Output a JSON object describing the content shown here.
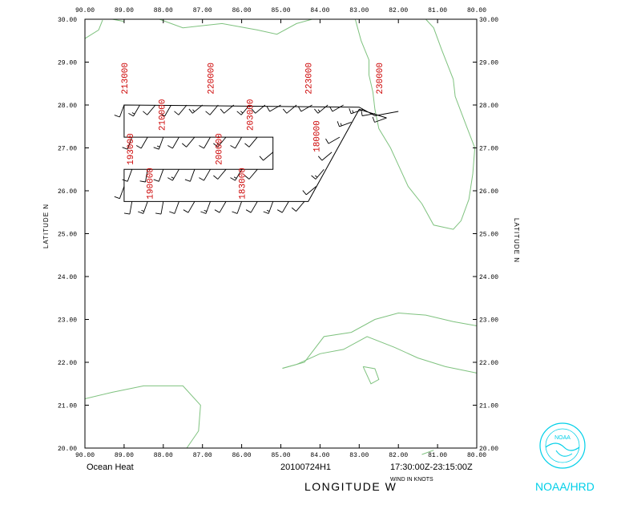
{
  "map": {
    "lon_range": [
      -90,
      -80
    ],
    "lat_range": [
      20,
      30
    ],
    "lon_ticks": [
      "90.00",
      "89.00",
      "88.00",
      "87.00",
      "86.00",
      "85.00",
      "84.00",
      "83.00",
      "82.00",
      "81.00",
      "80.00"
    ],
    "lat_ticks": [
      "20.00",
      "21.00",
      "22.00",
      "23.00",
      "24.00",
      "25.00",
      "26.00",
      "27.00",
      "28.00",
      "29.00",
      "30.00"
    ],
    "xlabel": "LONGITUDE W",
    "ylabel_left": "LATITUDE N",
    "ylabel_right": "LATITUDE N",
    "colors": {
      "coast": "#7fc27f",
      "track": "#000000",
      "time_labels": "#cc0000",
      "logo": "#00cfe8"
    }
  },
  "footer": {
    "project": "Ocean Heat",
    "flight_id": "20100724H1",
    "time_range": "17:30:00Z-23:15:00Z",
    "wind_units": "WIND IN KNOTS"
  },
  "logo": {
    "org_text": "NOAA/HRD",
    "seal_text": "NOAA"
  },
  "time_labels": [
    {
      "text": "213000",
      "lon": -89.0,
      "lat": 28.25
    },
    {
      "text": "220000",
      "lon": -86.8,
      "lat": 28.25
    },
    {
      "text": "223000",
      "lon": -84.3,
      "lat": 28.25
    },
    {
      "text": "230000",
      "lon": -82.5,
      "lat": 28.25
    },
    {
      "text": "210000",
      "lon": -88.05,
      "lat": 27.4
    },
    {
      "text": "203000",
      "lon": -85.8,
      "lat": 27.4
    },
    {
      "text": "180000",
      "lon": -84.1,
      "lat": 26.9
    },
    {
      "text": "193000",
      "lon": -88.85,
      "lat": 26.6
    },
    {
      "text": "200000",
      "lon": -86.6,
      "lat": 26.6
    },
    {
      "text": "190000",
      "lon": -88.35,
      "lat": 25.8
    },
    {
      "text": "183000",
      "lon": -86.0,
      "lat": 25.8
    }
  ],
  "flight_track": [
    [
      -82.0,
      27.85
    ],
    [
      -82.6,
      27.75
    ],
    [
      -83.0,
      27.95
    ],
    [
      -89.0,
      28.0
    ],
    [
      -89.0,
      27.25
    ],
    [
      -85.2,
      27.25
    ],
    [
      -85.2,
      26.5
    ],
    [
      -89.0,
      26.5
    ],
    [
      -89.0,
      25.75
    ],
    [
      -84.3,
      25.75
    ],
    [
      -83.0,
      27.9
    ],
    [
      -82.3,
      27.7
    ]
  ],
  "wind_barbs": [
    {
      "lon": -89.0,
      "lat": 28.0,
      "dir": 200,
      "speed": 10
    },
    {
      "lon": -88.6,
      "lat": 28.0,
      "dir": 210,
      "speed": 15
    },
    {
      "lon": -88.2,
      "lat": 28.0,
      "dir": 220,
      "speed": 10
    },
    {
      "lon": -87.8,
      "lat": 28.0,
      "dir": 210,
      "speed": 10
    },
    {
      "lon": -87.4,
      "lat": 28.0,
      "dir": 220,
      "speed": 10
    },
    {
      "lon": -87.0,
      "lat": 28.0,
      "dir": 230,
      "speed": 15
    },
    {
      "lon": -86.6,
      "lat": 28.0,
      "dir": 220,
      "speed": 10
    },
    {
      "lon": -86.2,
      "lat": 28.0,
      "dir": 230,
      "speed": 10
    },
    {
      "lon": -85.8,
      "lat": 28.0,
      "dir": 220,
      "speed": 15
    },
    {
      "lon": -85.4,
      "lat": 28.0,
      "dir": 230,
      "speed": 10
    },
    {
      "lon": -85.0,
      "lat": 28.0,
      "dir": 240,
      "speed": 10
    },
    {
      "lon": -84.6,
      "lat": 28.0,
      "dir": 230,
      "speed": 10
    },
    {
      "lon": -84.2,
      "lat": 28.0,
      "dir": 240,
      "speed": 10
    },
    {
      "lon": -83.8,
      "lat": 28.0,
      "dir": 230,
      "speed": 15
    },
    {
      "lon": -83.4,
      "lat": 28.0,
      "dir": 240,
      "speed": 10
    },
    {
      "lon": -82.9,
      "lat": 27.9,
      "dir": 250,
      "speed": 15
    },
    {
      "lon": -82.6,
      "lat": 27.8,
      "dir": 260,
      "speed": 10
    },
    {
      "lon": -82.3,
      "lat": 27.7,
      "dir": 250,
      "speed": 10
    },
    {
      "lon": -88.8,
      "lat": 27.25,
      "dir": 200,
      "speed": 10
    },
    {
      "lon": -88.4,
      "lat": 27.25,
      "dir": 210,
      "speed": 10
    },
    {
      "lon": -88.0,
      "lat": 27.25,
      "dir": 200,
      "speed": 15
    },
    {
      "lon": -87.6,
      "lat": 27.25,
      "dir": 210,
      "speed": 10
    },
    {
      "lon": -87.2,
      "lat": 27.25,
      "dir": 220,
      "speed": 10
    },
    {
      "lon": -86.8,
      "lat": 27.25,
      "dir": 210,
      "speed": 10
    },
    {
      "lon": -86.4,
      "lat": 27.25,
      "dir": 220,
      "speed": 15
    },
    {
      "lon": -86.0,
      "lat": 27.25,
      "dir": 210,
      "speed": 10
    },
    {
      "lon": -85.6,
      "lat": 27.25,
      "dir": 220,
      "speed": 10
    },
    {
      "lon": -85.2,
      "lat": 26.9,
      "dir": 230,
      "speed": 10
    },
    {
      "lon": -85.6,
      "lat": 26.5,
      "dir": 220,
      "speed": 10
    },
    {
      "lon": -86.0,
      "lat": 26.5,
      "dir": 210,
      "speed": 15
    },
    {
      "lon": -86.4,
      "lat": 26.5,
      "dir": 220,
      "speed": 10
    },
    {
      "lon": -86.8,
      "lat": 26.5,
      "dir": 210,
      "speed": 10
    },
    {
      "lon": -87.2,
      "lat": 26.5,
      "dir": 200,
      "speed": 10
    },
    {
      "lon": -87.6,
      "lat": 26.5,
      "dir": 210,
      "speed": 15
    },
    {
      "lon": -88.0,
      "lat": 26.5,
      "dir": 200,
      "speed": 10
    },
    {
      "lon": -88.4,
      "lat": 26.5,
      "dir": 190,
      "speed": 10
    },
    {
      "lon": -88.8,
      "lat": 26.5,
      "dir": 200,
      "speed": 10
    },
    {
      "lon": -89.0,
      "lat": 26.1,
      "dir": 200,
      "speed": 10
    },
    {
      "lon": -88.8,
      "lat": 25.75,
      "dir": 190,
      "speed": 10
    },
    {
      "lon": -88.4,
      "lat": 25.75,
      "dir": 200,
      "speed": 15
    },
    {
      "lon": -88.0,
      "lat": 25.75,
      "dir": 190,
      "speed": 10
    },
    {
      "lon": -87.6,
      "lat": 25.75,
      "dir": 200,
      "speed": 10
    },
    {
      "lon": -87.2,
      "lat": 25.75,
      "dir": 210,
      "speed": 10
    },
    {
      "lon": -86.8,
      "lat": 25.75,
      "dir": 200,
      "speed": 15
    },
    {
      "lon": -86.4,
      "lat": 25.75,
      "dir": 210,
      "speed": 10
    },
    {
      "lon": -86.0,
      "lat": 25.75,
      "dir": 200,
      "speed": 10
    },
    {
      "lon": -85.6,
      "lat": 25.75,
      "dir": 210,
      "speed": 10
    },
    {
      "lon": -85.2,
      "lat": 25.75,
      "dir": 200,
      "speed": 15
    },
    {
      "lon": -84.8,
      "lat": 25.75,
      "dir": 210,
      "speed": 10
    },
    {
      "lon": -84.4,
      "lat": 25.75,
      "dir": 220,
      "speed": 10
    },
    {
      "lon": -84.1,
      "lat": 26.1,
      "dir": 230,
      "speed": 10
    },
    {
      "lon": -83.9,
      "lat": 26.5,
      "dir": 220,
      "speed": 15
    },
    {
      "lon": -83.7,
      "lat": 26.9,
      "dir": 230,
      "speed": 10
    },
    {
      "lon": -83.5,
      "lat": 27.25,
      "dir": 240,
      "speed": 10
    },
    {
      "lon": -83.2,
      "lat": 27.6,
      "dir": 250,
      "speed": 15
    }
  ],
  "coastlines": [
    [
      [
        -83.1,
        30.0
      ],
      [
        -82.95,
        29.5
      ],
      [
        -82.75,
        29.05
      ],
      [
        -82.75,
        28.7
      ],
      [
        -82.65,
        28.3
      ],
      [
        -82.6,
        27.9
      ],
      [
        -82.5,
        27.45
      ],
      [
        -82.2,
        27.0
      ],
      [
        -82.0,
        26.6
      ],
      [
        -81.75,
        26.1
      ],
      [
        -81.4,
        25.7
      ],
      [
        -81.1,
        25.2
      ],
      [
        -80.6,
        25.1
      ],
      [
        -80.4,
        25.3
      ],
      [
        -80.2,
        25.8
      ],
      [
        -80.1,
        26.4
      ],
      [
        -80.05,
        27.0
      ],
      [
        -80.3,
        27.6
      ],
      [
        -80.55,
        28.2
      ],
      [
        -80.6,
        28.6
      ],
      [
        -80.9,
        29.3
      ],
      [
        -81.1,
        29.8
      ],
      [
        -81.3,
        30.0
      ]
    ],
    [
      [
        -90.0,
        29.55
      ],
      [
        -89.65,
        29.75
      ],
      [
        -89.55,
        29.98
      ]
    ],
    [
      [
        -89.3,
        30.0
      ],
      [
        -89.0,
        29.95
      ]
    ],
    [
      [
        -88.1,
        30.0
      ],
      [
        -87.5,
        29.8
      ],
      [
        -86.5,
        29.9
      ],
      [
        -85.6,
        29.75
      ],
      [
        -85.1,
        29.65
      ],
      [
        -84.6,
        29.9
      ],
      [
        -84.2,
        30.0
      ]
    ],
    [
      [
        -84.96,
        21.86
      ],
      [
        -84.4,
        22.0
      ],
      [
        -83.9,
        22.6
      ],
      [
        -83.2,
        22.7
      ],
      [
        -82.6,
        23.0
      ],
      [
        -82.0,
        23.15
      ],
      [
        -81.3,
        23.1
      ],
      [
        -80.6,
        22.95
      ],
      [
        -80.0,
        22.85
      ]
    ],
    [
      [
        -84.96,
        21.86
      ],
      [
        -84.6,
        21.95
      ],
      [
        -84.0,
        22.2
      ],
      [
        -83.4,
        22.3
      ],
      [
        -82.8,
        22.6
      ],
      [
        -82.1,
        22.35
      ],
      [
        -81.5,
        22.1
      ],
      [
        -80.8,
        21.9
      ],
      [
        -80.0,
        21.75
      ]
    ],
    [
      [
        -82.9,
        21.9
      ],
      [
        -82.7,
        21.5
      ],
      [
        -82.5,
        21.6
      ],
      [
        -82.6,
        21.85
      ],
      [
        -82.9,
        21.9
      ]
    ],
    [
      [
        -90.0,
        21.15
      ],
      [
        -89.3,
        21.3
      ],
      [
        -88.5,
        21.45
      ],
      [
        -87.5,
        21.45
      ],
      [
        -87.05,
        21.0
      ],
      [
        -87.1,
        20.4
      ],
      [
        -87.4,
        20.0
      ]
    ],
    [
      [
        -81.4,
        19.85
      ],
      [
        -81.1,
        19.95
      ]
    ]
  ]
}
